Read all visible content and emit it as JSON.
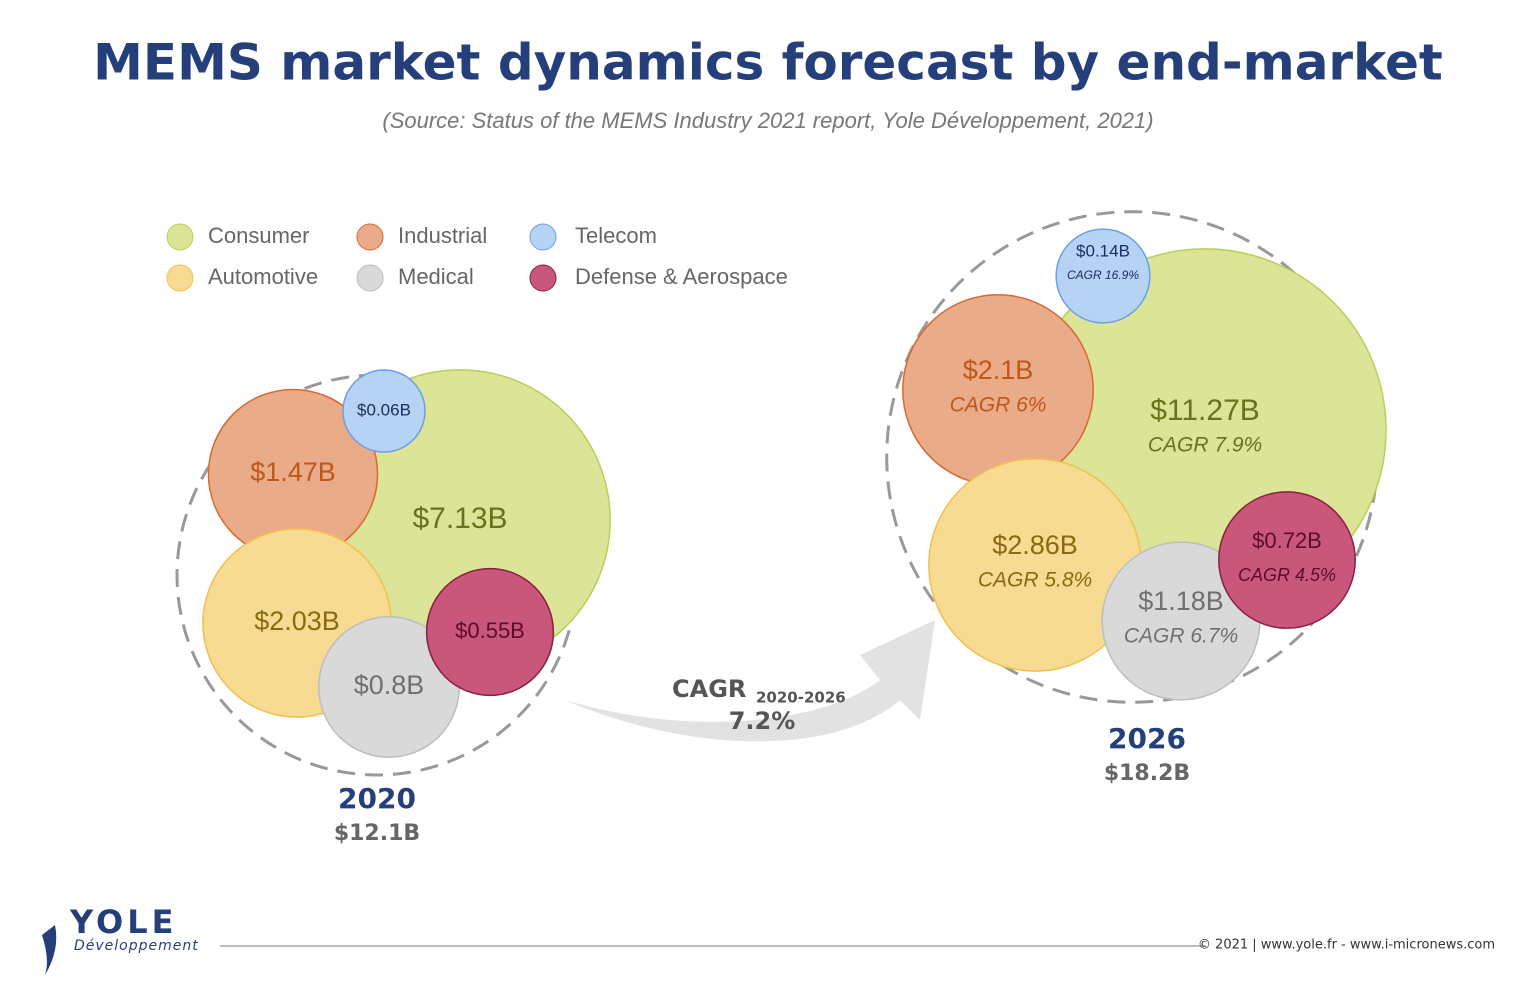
{
  "title": "MEMS market dynamics forecast by end-market",
  "subtitle": "(Source: Status of the MEMS Industry 2021 report, Yole Développement, 2021)",
  "chart_data": {
    "type": "bubble",
    "categories": [
      "2020",
      "2026"
    ],
    "totals": {
      "values": [
        12.1,
        18.2
      ],
      "value_labels": [
        "$12.1B",
        "$18.2B"
      ]
    },
    "series": [
      {
        "name": "Consumer",
        "color": "#dce597",
        "stroke": "#b8cf5a",
        "label_color": "#66741c",
        "values": [
          7.13,
          11.27
        ],
        "value_labels": [
          "$7.13B",
          "$11.27B"
        ],
        "cagr_label": "CAGR 7.9%"
      },
      {
        "name": "Industrial",
        "color": "#e9ab88",
        "stroke": "#d9692f",
        "label_color": "#c0571a",
        "values": [
          1.47,
          2.1
        ],
        "value_labels": [
          "$1.47B",
          "$2.1B"
        ],
        "cagr_label": "CAGR 6%"
      },
      {
        "name": "Telecom",
        "color": "#b6d3f6",
        "stroke": "#6a9fe0",
        "label_color": "#1a2f60",
        "values": [
          0.06,
          0.14
        ],
        "value_labels": [
          "$0.06B",
          "$0.14B"
        ],
        "cagr_label": "CAGR 16.9%"
      },
      {
        "name": "Automotive",
        "color": "#f7db92",
        "stroke": "#f0c050",
        "label_color": "#8a6a10",
        "values": [
          2.03,
          2.86
        ],
        "value_labels": [
          "$2.03B",
          "$2.86B"
        ],
        "cagr_label": "CAGR 5.8%"
      },
      {
        "name": "Medical",
        "color": "#d9d9d9",
        "stroke": "#bdbdbd",
        "label_color": "#707070",
        "values": [
          0.8,
          1.18
        ],
        "value_labels": [
          "$0.8B",
          "$1.18B"
        ],
        "cagr_label": "CAGR 6.7%"
      },
      {
        "name": "Defense & Aerospace",
        "color": "#c9577c",
        "stroke": "#8a2040",
        "label_color": "#5a0c28",
        "values": [
          0.55,
          0.72
        ],
        "value_labels": [
          "$0.55B",
          "$0.72B"
        ],
        "cagr_label": "CAGR 4.5%"
      }
    ],
    "cagr_title": "CAGR",
    "cagr_period": "2020-2026",
    "cagr_total": "7.2%"
  },
  "footer": {
    "logo": "YOLE",
    "logo_sub": "Développement",
    "copyright": "© 2021 | www.yole.fr - www.i-micronews.com"
  }
}
